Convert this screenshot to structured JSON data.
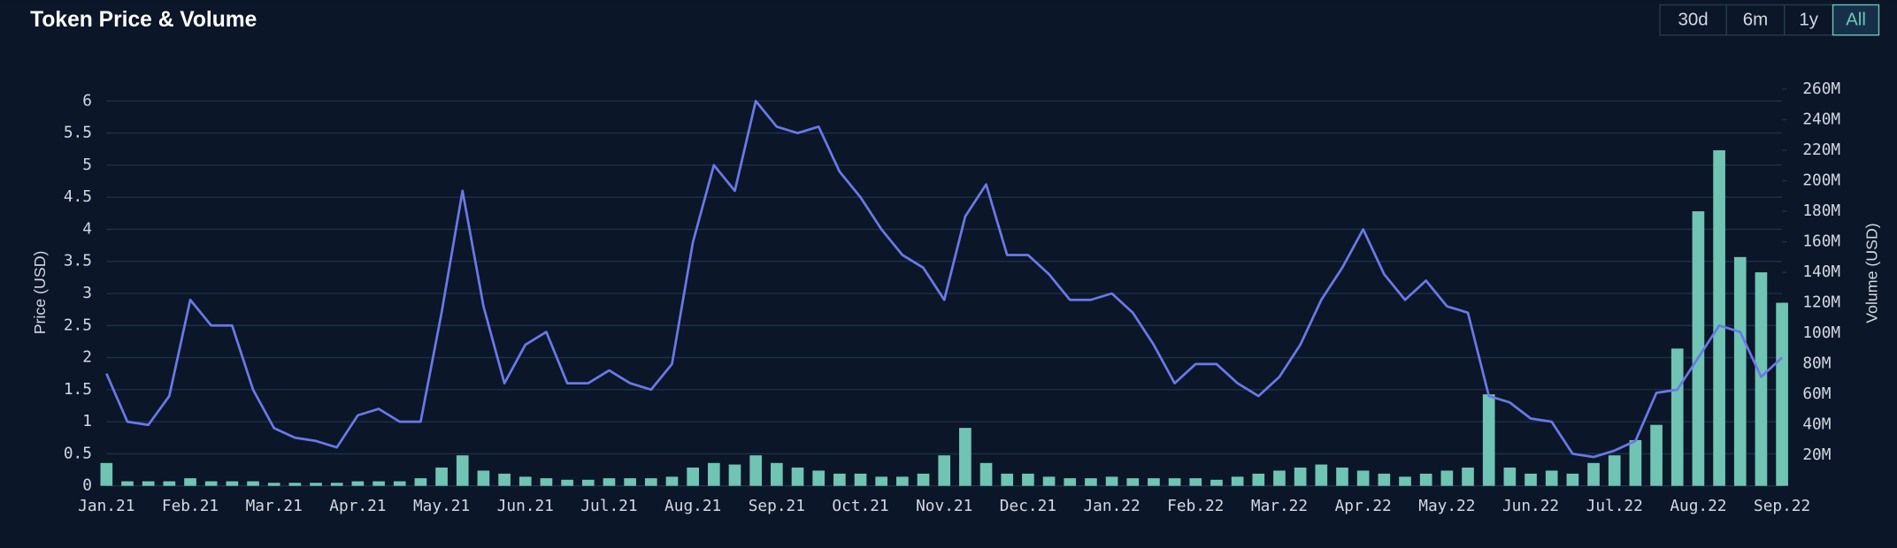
{
  "chart_data": {
    "type": "combo",
    "title": "Token Price & Volume",
    "y_label": "Price (USD)",
    "y2_label": "Volume (USD)",
    "categories": [
      "Jan.21",
      null,
      null,
      null,
      "Feb.21",
      null,
      null,
      null,
      "Mar.21",
      null,
      null,
      null,
      "Apr.21",
      null,
      null,
      null,
      "May.21",
      null,
      null,
      null,
      "Jun.21",
      null,
      null,
      null,
      "Jul.21",
      null,
      null,
      null,
      "Aug.21",
      null,
      null,
      null,
      "Sep.21",
      null,
      null,
      null,
      "Oct.21",
      null,
      null,
      null,
      "Nov.21",
      null,
      null,
      null,
      "Dec.21",
      null,
      null,
      null,
      "Jan.22",
      null,
      null,
      null,
      "Feb.22",
      null,
      null,
      null,
      "Mar.22",
      null,
      null,
      null,
      "Apr.22",
      null,
      null,
      null,
      "May.22",
      null,
      null,
      null,
      "Jun.22",
      null,
      null,
      null,
      "Jul.22",
      null,
      null,
      null,
      "Aug.22",
      null,
      null,
      null,
      "Sep.22"
    ],
    "series": [
      {
        "name": "Volume",
        "type": "bar",
        "axis": "y2",
        "color": "#6fc4b3",
        "values": [
          15000000,
          3000000,
          3000000,
          3000000,
          5000000,
          3000000,
          3000000,
          3000000,
          2000000,
          2000000,
          2000000,
          2000000,
          3000000,
          3000000,
          3000000,
          5000000,
          12000000,
          20000000,
          10000000,
          8000000,
          6000000,
          5000000,
          4000000,
          4000000,
          5000000,
          5000000,
          5000000,
          6000000,
          12000000,
          15000000,
          14000000,
          20000000,
          15000000,
          12000000,
          10000000,
          8000000,
          8000000,
          6000000,
          6000000,
          8000000,
          20000000,
          38000000,
          15000000,
          8000000,
          8000000,
          6000000,
          5000000,
          5000000,
          6000000,
          5000000,
          5000000,
          5000000,
          5000000,
          4000000,
          6000000,
          8000000,
          10000000,
          12000000,
          14000000,
          12000000,
          10000000,
          8000000,
          6000000,
          8000000,
          10000000,
          12000000,
          60000000,
          12000000,
          8000000,
          10000000,
          8000000,
          15000000,
          20000000,
          30000000,
          40000000,
          90000000,
          180000000,
          220000000,
          150000000,
          140000000,
          120000000
        ]
      },
      {
        "name": "Price",
        "type": "line",
        "axis": "y",
        "color": "#6b78e8",
        "values": [
          1.75,
          1.0,
          0.95,
          1.4,
          2.9,
          2.5,
          2.5,
          1.5,
          0.9,
          0.75,
          0.7,
          0.6,
          1.1,
          1.2,
          1.0,
          1.0,
          2.7,
          4.6,
          2.8,
          1.6,
          2.2,
          2.4,
          1.6,
          1.6,
          1.8,
          1.6,
          1.5,
          1.9,
          3.8,
          5.0,
          4.6,
          6.0,
          5.6,
          5.5,
          5.6,
          4.9,
          4.5,
          4.0,
          3.6,
          3.4,
          2.9,
          4.2,
          4.7,
          3.6,
          3.6,
          3.3,
          2.9,
          2.9,
          3.0,
          2.7,
          2.2,
          1.6,
          1.9,
          1.9,
          1.6,
          1.4,
          1.7,
          2.2,
          2.9,
          3.4,
          4.0,
          3.3,
          2.9,
          3.2,
          2.8,
          2.7,
          1.4,
          1.3,
          1.05,
          1.0,
          0.5,
          0.45,
          0.55,
          0.7,
          1.45,
          1.5,
          2.0,
          2.5,
          2.4,
          1.7,
          2.0
        ]
      }
    ],
    "ylim": [
      0,
      6.35
    ],
    "yticks": [
      0,
      0.5,
      1,
      1.5,
      2,
      2.5,
      3,
      3.5,
      4,
      4.5,
      5,
      5.5,
      6
    ],
    "y2lim": [
      0,
      267000000
    ],
    "y2ticks": [
      {
        "value": 20000000,
        "label": "20M"
      },
      {
        "value": 40000000,
        "label": "40M"
      },
      {
        "value": 60000000,
        "label": "60M"
      },
      {
        "value": 80000000,
        "label": "80M"
      },
      {
        "value": 100000000,
        "label": "100M"
      },
      {
        "value": 120000000,
        "label": "120M"
      },
      {
        "value": 140000000,
        "label": "140M"
      },
      {
        "value": 160000000,
        "label": "160M"
      },
      {
        "value": 180000000,
        "label": "180M"
      },
      {
        "value": 200000000,
        "label": "200M"
      },
      {
        "value": 220000000,
        "label": "220M"
      },
      {
        "value": 240000000,
        "label": "240M"
      },
      {
        "value": 260000000,
        "label": "260M"
      }
    ],
    "grid": true
  },
  "range_buttons": [
    {
      "label": "30d",
      "selected": false
    },
    {
      "label": "6m",
      "selected": false
    },
    {
      "label": "1y",
      "selected": false
    },
    {
      "label": "All",
      "selected": true
    }
  ]
}
